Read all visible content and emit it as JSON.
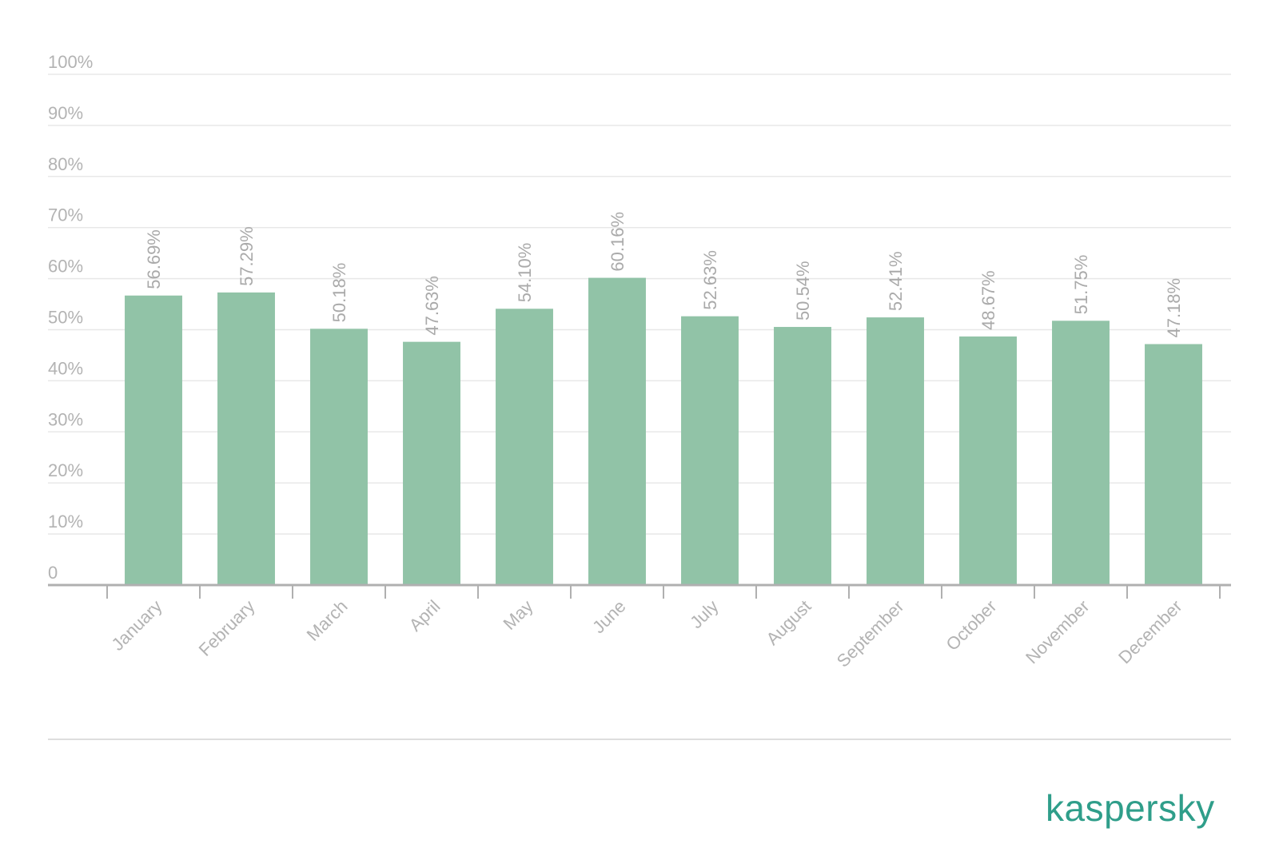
{
  "chart_data": {
    "type": "bar",
    "categories": [
      "January",
      "February",
      "March",
      "April",
      "May",
      "June",
      "July",
      "August",
      "September",
      "October",
      "November",
      "December"
    ],
    "values": [
      56.69,
      57.29,
      50.18,
      47.63,
      54.1,
      60.16,
      52.63,
      50.54,
      52.41,
      48.67,
      51.75,
      47.18
    ],
    "data_labels": [
      "56.69%",
      "57.29%",
      "50.18%",
      "47.63%",
      "54.10%",
      "60.16%",
      "52.63%",
      "50.54%",
      "52.41%",
      "48.67%",
      "51.75%",
      "47.18%"
    ],
    "yticks": [
      0,
      10,
      20,
      30,
      40,
      50,
      60,
      70,
      80,
      90,
      100
    ],
    "ytick_labels": [
      "0",
      "10%",
      "20%",
      "30%",
      "40%",
      "50%",
      "60%",
      "70%",
      "80%",
      "90%",
      "100%"
    ],
    "ylim": [
      0,
      100
    ],
    "grid": true,
    "bar_color": "#91c3a7",
    "title": "",
    "xlabel": "",
    "ylabel": ""
  },
  "brand": {
    "logo_text": "kaspersky",
    "color": "#2f9e8a"
  }
}
